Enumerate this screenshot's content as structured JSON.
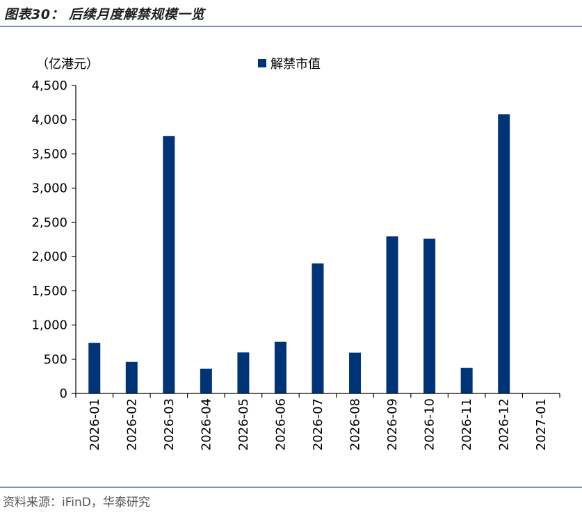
{
  "header": {
    "title": "图表30： 后续月度解禁规模一览"
  },
  "footer": {
    "source": "资料来源：iFinD，华泰研究"
  },
  "chart_data": {
    "type": "bar",
    "unit": "（亿港元）",
    "categories": [
      "2026-01",
      "2026-02",
      "2026-03",
      "2026-04",
      "2026-05",
      "2026-06",
      "2026-07",
      "2026-08",
      "2026-09",
      "2026-10",
      "2026-11",
      "2026-12",
      "2027-01"
    ],
    "series": [
      {
        "name": "解禁市值",
        "values": [
          740,
          460,
          3760,
          360,
          600,
          755,
          1900,
          595,
          2295,
          2260,
          375,
          4080,
          0
        ],
        "color": "#003478"
      }
    ],
    "ylim": [
      0,
      4500
    ],
    "yticks": [
      0,
      500,
      1000,
      1500,
      2000,
      2500,
      3000,
      3500,
      4000,
      4500
    ],
    "ytick_labels": [
      "0",
      "500",
      "1,000",
      "1,500",
      "2,000",
      "2,500",
      "3,000",
      "3,500",
      "4,000",
      "4,500"
    ],
    "legend_position": "top",
    "grid": false
  }
}
